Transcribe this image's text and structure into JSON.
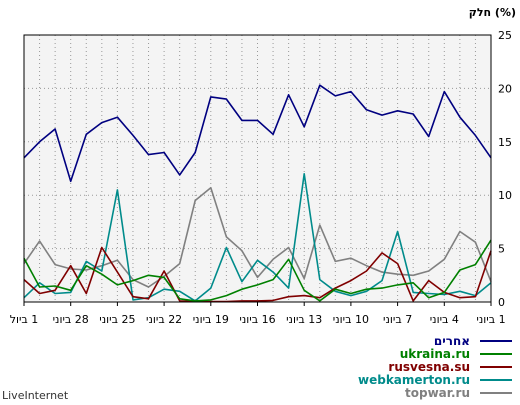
{
  "chart_data": {
    "type": "line",
    "ylabel": "חלק (%)",
    "ylim": [
      0,
      25
    ],
    "yticks": [
      0,
      5,
      10,
      15,
      20,
      25
    ],
    "grid": true,
    "legend_placement": "bottom-right",
    "x_labels": [
      "1 ביול",
      "28 ביוני",
      "25 ביוני",
      "22 ביוני",
      "19 ביוני",
      "16 ביוני",
      "13 ביוני",
      "10 ביוני",
      "7 ביוני",
      "4 ביוני",
      "1 ביוני"
    ],
    "series": [
      {
        "name": "אחרים",
        "color": "#000080",
        "values": [
          13.5,
          15,
          16.2,
          11.3,
          15.7,
          16.8,
          17.3,
          15.6,
          13.8,
          14,
          11.9,
          14,
          19.2,
          19,
          17,
          17,
          15.7,
          19.4,
          16.4,
          20.3,
          19.3,
          19.7,
          18,
          17.5,
          17.9,
          17.6,
          15.5,
          19.7,
          17.3,
          15.6,
          13.5
        ]
      },
      {
        "name": "ukraina.ru",
        "color": "#008000",
        "values": [
          4.1,
          1.4,
          1.5,
          1.1,
          3.4,
          2.6,
          1.6,
          2,
          2.5,
          2.3,
          0.3,
          0.1,
          0.2,
          0.6,
          1.2,
          1.6,
          2.1,
          4,
          1.1,
          0.1,
          1.2,
          0.8,
          1.2,
          1.3,
          1.6,
          1.8,
          0.4,
          0.9,
          3,
          3.5,
          5.8
        ]
      },
      {
        "name": "rusvesna.su",
        "color": "#800000",
        "values": [
          2.1,
          0.8,
          1.1,
          3.4,
          0.8,
          5.1,
          2.8,
          0.5,
          0.3,
          2.9,
          0.1,
          0.05,
          0.05,
          0.05,
          0.1,
          0.1,
          0.15,
          0.5,
          0.6,
          0.4,
          1.3,
          2,
          2.9,
          4.6,
          3.6,
          0.1,
          2,
          0.9,
          0.4,
          0.5,
          4.8
        ]
      },
      {
        "name": "webkamerton.ru",
        "color": "#008b8b",
        "values": [
          0.4,
          1.8,
          0.8,
          0.9,
          3.8,
          2.9,
          10.5,
          0.2,
          0.4,
          1.2,
          1,
          0.1,
          1.3,
          5.1,
          1.9,
          3.9,
          2.8,
          1.3,
          12,
          2.1,
          1,
          0.6,
          1,
          2,
          6.6,
          0.9,
          0.8,
          0.7,
          1,
          0.6,
          1.8
        ]
      },
      {
        "name": "topwar.ru",
        "color": "#808080",
        "values": [
          3.6,
          5.7,
          3.5,
          3.1,
          3,
          3.4,
          3.9,
          2.1,
          1.4,
          2.4,
          3.6,
          9.5,
          10.7,
          6.1,
          4.8,
          2.3,
          4,
          5.1,
          2.2,
          7.2,
          3.8,
          4.1,
          3.4,
          2.8,
          2.6,
          2.5,
          2.9,
          4,
          6.6,
          5.6,
          1.9
        ]
      }
    ]
  },
  "footer": "LiveInternet"
}
